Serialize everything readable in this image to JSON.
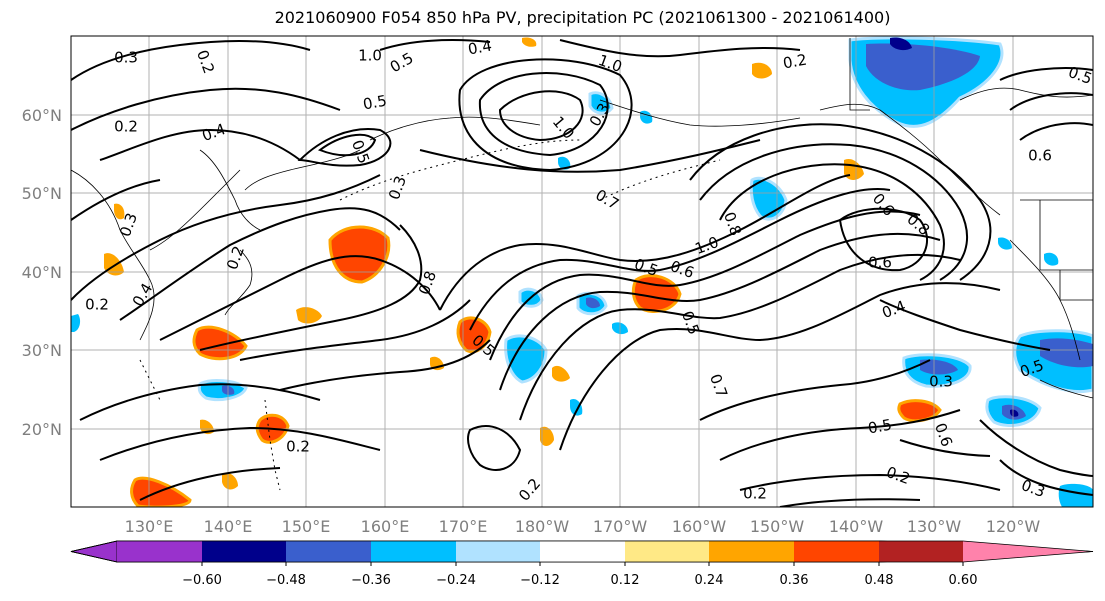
{
  "title": "2021060900 F054 850 hPa PV, precipitation PC (2021061300 - 2021061400)",
  "lat_labels": [
    "60°N",
    "50°N",
    "40°N",
    "30°N",
    "20°N"
  ],
  "lon_labels": [
    "130°E",
    "140°E",
    "150°E",
    "160°E",
    "170°E",
    "180°W",
    "170°W",
    "160°W",
    "150°W",
    "140°W",
    "130°W",
    "120°W"
  ],
  "colorbar": {
    "colors": [
      "#9932cc",
      "#00008b",
      "#3a5fcd",
      "#00bfff",
      "#b0e2ff",
      "#ffffff",
      "#ffe986",
      "#ffa500",
      "#ff4500",
      "#b22222",
      "#ff82ab"
    ],
    "ticks": [
      "−0.60",
      "−0.48",
      "−0.36",
      "−0.24",
      "−0.12",
      "0.12",
      "0.24",
      "0.36",
      "0.48",
      "0.60"
    ]
  },
  "contour_labels": [
    "0.3",
    "0.2",
    "0.2",
    "1.0",
    "0.5",
    "0.4",
    "1.0",
    "0.2",
    "0.5",
    "0.4",
    "0.5",
    "1.0",
    "0.2",
    "0.3",
    "0.2",
    "0.4",
    "0.3",
    "0.7",
    "0.8",
    "0.6",
    "1.0",
    "0.5",
    "0.6",
    "0.8",
    "0.6",
    "0.8",
    "0.5",
    "0.5",
    "0.7",
    "0.4",
    "0.3",
    "0.2",
    "0.5",
    "0.5",
    "0.6",
    "0.2",
    "0.2",
    "0.2",
    "0.3",
    "0.6",
    "0.5",
    "0.3"
  ]
}
